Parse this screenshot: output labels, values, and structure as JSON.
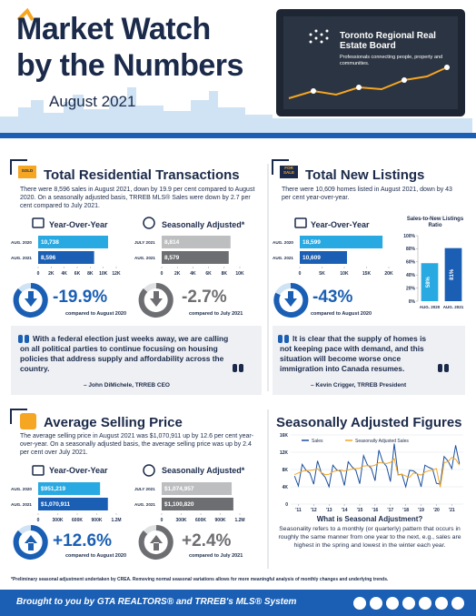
{
  "header": {
    "title_line1": "Market Watch",
    "title_line2": "by the Numbers",
    "period": "August 2021",
    "board_name": "Toronto Regional Real Estate Board",
    "tagline": "Professionals connecting people, property and communities."
  },
  "sections": [
    {
      "icon_label": "SOLD",
      "title": "Total Residential Transactions",
      "description": "There were 8,596 sales in August 2021, down by 19.9 per cent compared to August 2020. On a seasonally adjusted basis, TRREB MLS® Sales were down by 2.7 per cent compared to July 2021.",
      "stats": [
        {
          "value": "-19.9%",
          "caption": "compared to August 2020"
        },
        {
          "value": "-2.7%",
          "caption": "compared to July 2021"
        }
      ],
      "quote": {
        "text": "With a federal election just weeks away, we are calling on all political parties to continue focusing on housing policies that address supply and affordability across the country.",
        "author": "– John DiMichele, TRREB CEO"
      }
    },
    {
      "icon_label": "FOR SALE",
      "title": "Total New Listings",
      "description": "There were 10,609 homes listed in August 2021, down by 43 per cent year-over-year.",
      "stats": [
        {
          "value": "-43%",
          "caption": "compared to August 2020"
        }
      ],
      "quote": {
        "text": "It is clear that the supply of homes is not keeping pace with demand, and this situation will become worse once immigration into Canada resumes.",
        "author": "– Kevin Crigger, TRREB President"
      }
    },
    {
      "title": "Average Selling Price",
      "description": "The average selling price in August 2021 was $1,070,911 up by 12.6 per cent year-over-year. On a seasonally adjusted basis, the average selling price was up by 2.4 per cent over July 2021.",
      "stats": [
        {
          "value": "+12.6%",
          "caption": "compared to August 2020"
        },
        {
          "value": "+2.4%",
          "caption": "compared to July 2021"
        }
      ]
    },
    {
      "title": "Seasonally Adjusted Figures",
      "question": "What is Seasonal Adjustment?",
      "explanation": "Seasonality refers to a monthly (or quarterly) pattern that occurs in roughly the same manner from one year to the next, e.g., sales are highest in the spring and lowest in the winter each year."
    }
  ],
  "footnote": "*Preliminary seasonal adjustment undertaken by CREA. Removing normal seasonal variations allows for more meaningful analysis of monthly changes and underlying trends.",
  "footer": "Brought to you by GTA REALTORS® and TRREB's MLS® System",
  "chart_data": [
    {
      "type": "bar",
      "orientation": "horizontal",
      "title": "Year-Over-Year",
      "categories": [
        "AUG. 2020",
        "AUG. 2021"
      ],
      "values": [
        10738,
        8596
      ],
      "value_labels": [
        "10,738",
        "8,596"
      ],
      "colors": [
        "#29a9e1",
        "#1a5fb4"
      ],
      "xlim": [
        0,
        12000
      ],
      "xticks": [
        0,
        {
          "value": 2000,
          "label": "2K"
        },
        {
          "value": 4000,
          "label": "4K"
        },
        {
          "value": 6000,
          "label": "6K"
        },
        {
          "value": 8000,
          "label": "8K"
        },
        {
          "value": 10000,
          "label": "10K"
        },
        {
          "value": 12000,
          "label": "12K"
        }
      ]
    },
    {
      "type": "bar",
      "orientation": "horizontal",
      "title": "Seasonally Adjusted*",
      "categories": [
        "JULY 2021",
        "AUG. 2021"
      ],
      "values": [
        8814,
        8579
      ],
      "value_labels": [
        "8,814",
        "8,579"
      ],
      "colors": [
        "#bcbec0",
        "#6d6e71"
      ],
      "xlim": [
        0,
        10000
      ],
      "xticks": [
        0,
        {
          "value": 2000,
          "label": "2K"
        },
        {
          "value": 4000,
          "label": "4K"
        },
        {
          "value": 6000,
          "label": "6K"
        },
        {
          "value": 8000,
          "label": "8K"
        },
        {
          "value": 10000,
          "label": "10K"
        }
      ]
    },
    {
      "type": "bar",
      "orientation": "horizontal",
      "title": "Year-Over-Year",
      "categories": [
        "AUG. 2020",
        "AUG. 2021"
      ],
      "values": [
        18599,
        10609
      ],
      "value_labels": [
        "18,599",
        "10,609"
      ],
      "colors": [
        "#29a9e1",
        "#1a5fb4"
      ],
      "xlim": [
        0,
        20000
      ],
      "xticks": [
        0,
        {
          "value": 5000,
          "label": "5K"
        },
        {
          "value": 10000,
          "label": "10K"
        },
        {
          "value": 15000,
          "label": "15K"
        },
        {
          "value": 20000,
          "label": "20K"
        }
      ]
    },
    {
      "type": "bar",
      "orientation": "vertical",
      "title": "Sales-to-New Listings Ratio",
      "categories": [
        "AUG. 2020",
        "AUG. 2021"
      ],
      "values": [
        58,
        81
      ],
      "value_labels": [
        "58%",
        "81%"
      ],
      "colors": [
        "#29a9e1",
        "#1a5fb4"
      ],
      "ylim": [
        0,
        100
      ],
      "yticks": [
        {
          "value": 0,
          "label": "0%"
        },
        {
          "value": 20,
          "label": "20%"
        },
        {
          "value": 40,
          "label": "40%"
        },
        {
          "value": 60,
          "label": "60%"
        },
        {
          "value": 80,
          "label": "80%"
        },
        {
          "value": 100,
          "label": "100%"
        }
      ]
    },
    {
      "type": "bar",
      "orientation": "horizontal",
      "title": "Year-Over-Year",
      "categories": [
        "AUG. 2020",
        "AUG. 2021"
      ],
      "values": [
        951219,
        1070911
      ],
      "value_labels": [
        "$951,219",
        "$1,070,911"
      ],
      "colors": [
        "#29a9e1",
        "#1a5fb4"
      ],
      "xlim": [
        0,
        1200000
      ],
      "xticks": [
        0,
        {
          "value": 300000,
          "label": "300K"
        },
        {
          "value": 600000,
          "label": "600K"
        },
        {
          "value": 900000,
          "label": "900K"
        },
        {
          "value": 1200000,
          "label": "1.2M"
        }
      ]
    },
    {
      "type": "bar",
      "orientation": "horizontal",
      "title": "Seasonally Adjusted*",
      "categories": [
        "JULY 2021",
        "AUG. 2021"
      ],
      "values": [
        1074957,
        1100820
      ],
      "value_labels": [
        "$1,074,957",
        "$1,100,820"
      ],
      "colors": [
        "#bcbec0",
        "#6d6e71"
      ],
      "xlim": [
        0,
        1200000
      ],
      "xticks": [
        0,
        {
          "value": 300000,
          "label": "300K"
        },
        {
          "value": 600000,
          "label": "600K"
        },
        {
          "value": 900000,
          "label": "900K"
        },
        {
          "value": 1200000,
          "label": "1.2M"
        }
      ]
    },
    {
      "type": "line",
      "legend": "top",
      "grid": true,
      "x": [
        2010.75,
        2011,
        2011.25,
        2011.5,
        2011.75,
        2012,
        2012.25,
        2012.5,
        2012.75,
        2013,
        2013.25,
        2013.5,
        2013.75,
        2014,
        2014.25,
        2014.5,
        2014.75,
        2015,
        2015.25,
        2015.5,
        2015.75,
        2016,
        2016.25,
        2016.5,
        2016.75,
        2017,
        2017.25,
        2017.5,
        2017.75,
        2018,
        2018.25,
        2018.5,
        2018.75,
        2019,
        2019.25,
        2019.5,
        2019.75,
        2020,
        2020.25,
        2020.5,
        2020.75,
        2021,
        2021.25,
        2021.5
      ],
      "series": [
        {
          "name": "Sales",
          "color": "#1a4f9c",
          "values": [
            6500,
            4200,
            9200,
            7800,
            7200,
            4600,
            10000,
            7200,
            6200,
            4000,
            9000,
            7900,
            7600,
            4300,
            9800,
            8600,
            7800,
            4700,
            11200,
            9100,
            8300,
            5400,
            12500,
            9800,
            8700,
            5200,
            14000,
            6800,
            6900,
            4000,
            7800,
            7700,
            7000,
            4000,
            9000,
            8500,
            8100,
            4800,
            4600,
            11000,
            10000,
            8200,
            13600,
            9300
          ]
        },
        {
          "name": "Seasonally Adjusted Sales",
          "color": "#f5a623",
          "values": [
            6800,
            7200,
            7600,
            7700,
            7800,
            7900,
            8200,
            7300,
            6800,
            6900,
            7500,
            7700,
            7900,
            7600,
            7900,
            8100,
            8200,
            8300,
            8800,
            8900,
            8800,
            9000,
            9600,
            9500,
            9400,
            9600,
            10500,
            6700,
            6900,
            6500,
            6200,
            7200,
            7000,
            6700,
            7400,
            7700,
            7900,
            8200,
            3900,
            9600,
            9800,
            10800,
            10400,
            9000
          ]
        }
      ],
      "xlim": [
        2010.5,
        2021.75
      ],
      "xticks": [
        {
          "value": 2011,
          "label": "'11"
        },
        {
          "value": 2012,
          "label": "'12"
        },
        {
          "value": 2013,
          "label": "'13"
        },
        {
          "value": 2014,
          "label": "'14"
        },
        {
          "value": 2015,
          "label": "'15"
        },
        {
          "value": 2016,
          "label": "'16"
        },
        {
          "value": 2017,
          "label": "'17"
        },
        {
          "value": 2018,
          "label": "'18"
        },
        {
          "value": 2019,
          "label": "'19"
        },
        {
          "value": 2020,
          "label": "'20"
        },
        {
          "value": 2021,
          "label": "'21"
        }
      ],
      "ylim": [
        0,
        16000
      ],
      "yticks": [
        0,
        {
          "value": 4000,
          "label": "4K"
        },
        {
          "value": 8000,
          "label": "8K"
        },
        {
          "value": 12000,
          "label": "12K"
        },
        {
          "value": 16000,
          "label": "16K"
        }
      ]
    }
  ]
}
